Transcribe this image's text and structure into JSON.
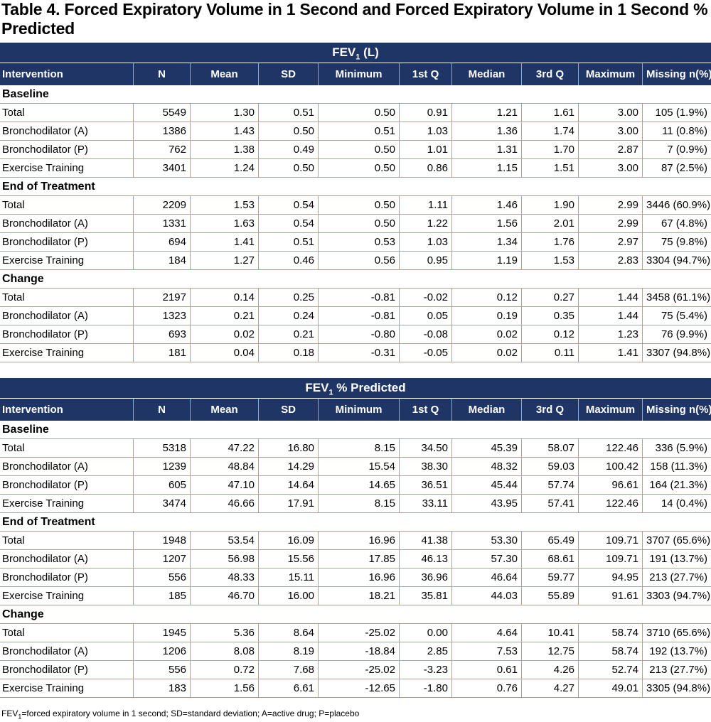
{
  "title": "Table 4.  Forced Expiratory Volume in 1 Second  and Forced Expiratory Volume in 1 Second % Predicted",
  "columns": [
    "Intervention",
    "N",
    "Mean",
    "SD",
    "Minimum",
    "1st Q",
    "Median",
    "3rd Q",
    "Maximum",
    "Missing n(%)"
  ],
  "tables": [
    {
      "band_main": "FEV",
      "band_sub": "1",
      "band_rest": " (L)",
      "sections": [
        {
          "label": "Baseline",
          "rows": [
            [
              "Total",
              "5549",
              "1.30",
              "0.51",
              "0.50",
              "0.91",
              "1.21",
              "1.61",
              "3.00",
              "105 (1.9%)"
            ],
            [
              "Bronchodilator (A)",
              "1386",
              "1.43",
              "0.50",
              "0.51",
              "1.03",
              "1.36",
              "1.74",
              "3.00",
              "11 (0.8%)"
            ],
            [
              "Bronchodilator (P)",
              "762",
              "1.38",
              "0.49",
              "0.50",
              "1.01",
              "1.31",
              "1.70",
              "2.87",
              "7 (0.9%)"
            ],
            [
              "Exercise Training",
              "3401",
              "1.24",
              "0.50",
              "0.50",
              "0.86",
              "1.15",
              "1.51",
              "3.00",
              "87 (2.5%)"
            ]
          ]
        },
        {
          "label": "End of Treatment",
          "rows": [
            [
              "Total",
              "2209",
              "1.53",
              "0.54",
              "0.50",
              "1.11",
              "1.46",
              "1.90",
              "2.99",
              "3446 (60.9%)"
            ],
            [
              "Bronchodilator (A)",
              "1331",
              "1.63",
              "0.54",
              "0.50",
              "1.22",
              "1.56",
              "2.01",
              "2.99",
              "67 (4.8%)"
            ],
            [
              "Bronchodilator (P)",
              "694",
              "1.41",
              "0.51",
              "0.53",
              "1.03",
              "1.34",
              "1.76",
              "2.97",
              "75 (9.8%)"
            ],
            [
              "Exercise Training",
              "184",
              "1.27",
              "0.46",
              "0.56",
              "0.95",
              "1.19",
              "1.53",
              "2.83",
              "3304 (94.7%)"
            ]
          ]
        },
        {
          "label": "Change",
          "rows": [
            [
              "Total",
              "2197",
              "0.14",
              "0.25",
              "-0.81",
              "-0.02",
              "0.12",
              "0.27",
              "1.44",
              "3458 (61.1%)"
            ],
            [
              "Bronchodilator (A)",
              "1323",
              "0.21",
              "0.24",
              "-0.81",
              "0.05",
              "0.19",
              "0.35",
              "1.44",
              "75 (5.4%)"
            ],
            [
              "Bronchodilator (P)",
              "693",
              "0.02",
              "0.21",
              "-0.80",
              "-0.08",
              "0.02",
              "0.12",
              "1.23",
              "76 (9.9%)"
            ],
            [
              "Exercise Training",
              "181",
              "0.04",
              "0.18",
              "-0.31",
              "-0.05",
              "0.02",
              "0.11",
              "1.41",
              "3307 (94.8%)"
            ]
          ]
        }
      ]
    },
    {
      "band_main": "FEV",
      "band_sub": "1",
      "band_rest": " % Predicted",
      "sections": [
        {
          "label": "Baseline",
          "rows": [
            [
              "Total",
              "5318",
              "47.22",
              "16.80",
              "8.15",
              "34.50",
              "45.39",
              "58.07",
              "122.46",
              "336 (5.9%)"
            ],
            [
              "Bronchodilator (A)",
              "1239",
              "48.84",
              "14.29",
              "15.54",
              "38.30",
              "48.32",
              "59.03",
              "100.42",
              "158 (11.3%)"
            ],
            [
              "Bronchodilator (P)",
              "605",
              "47.10",
              "14.64",
              "14.65",
              "36.51",
              "45.44",
              "57.74",
              "96.61",
              "164 (21.3%)"
            ],
            [
              "Exercise Training",
              "3474",
              "46.66",
              "17.91",
              "8.15",
              "33.11",
              "43.95",
              "57.41",
              "122.46",
              "14 (0.4%)"
            ]
          ]
        },
        {
          "label": "End of Treatment",
          "rows": [
            [
              "Total",
              "1948",
              "53.54",
              "16.09",
              "16.96",
              "41.38",
              "53.30",
              "65.49",
              "109.71",
              "3707 (65.6%)"
            ],
            [
              "Bronchodilator (A)",
              "1207",
              "56.98",
              "15.56",
              "17.85",
              "46.13",
              "57.30",
              "68.61",
              "109.71",
              "191 (13.7%)"
            ],
            [
              "Bronchodilator (P)",
              "556",
              "48.33",
              "15.11",
              "16.96",
              "36.96",
              "46.64",
              "59.77",
              "94.95",
              "213 (27.7%)"
            ],
            [
              "Exercise Training",
              "185",
              "46.70",
              "16.00",
              "18.21",
              "35.81",
              "44.03",
              "55.89",
              "91.61",
              "3303 (94.7%)"
            ]
          ]
        },
        {
          "label": "Change",
          "rows": [
            [
              "Total",
              "1945",
              "5.36",
              "8.64",
              "-25.02",
              "0.00",
              "4.64",
              "10.41",
              "58.74",
              "3710 (65.6%)"
            ],
            [
              "Bronchodilator (A)",
              "1206",
              "8.08",
              "8.19",
              "-18.84",
              "2.85",
              "7.53",
              "12.75",
              "58.74",
              "192 (13.7%)"
            ],
            [
              "Bronchodilator (P)",
              "556",
              "0.72",
              "7.68",
              "-25.02",
              "-3.23",
              "0.61",
              "4.26",
              "52.74",
              "213 (27.7%)"
            ],
            [
              "Exercise Training",
              "183",
              "1.56",
              "6.61",
              "-12.65",
              "-1.80",
              "0.76",
              "4.27",
              "49.01",
              "3305 (94.8%)"
            ]
          ]
        }
      ]
    }
  ],
  "footnote": {
    "part1": "FEV",
    "sub": "1",
    "part2": "=forced expiratory volume in 1 second; SD=standard deviation; A=active drug; P=placebo"
  }
}
